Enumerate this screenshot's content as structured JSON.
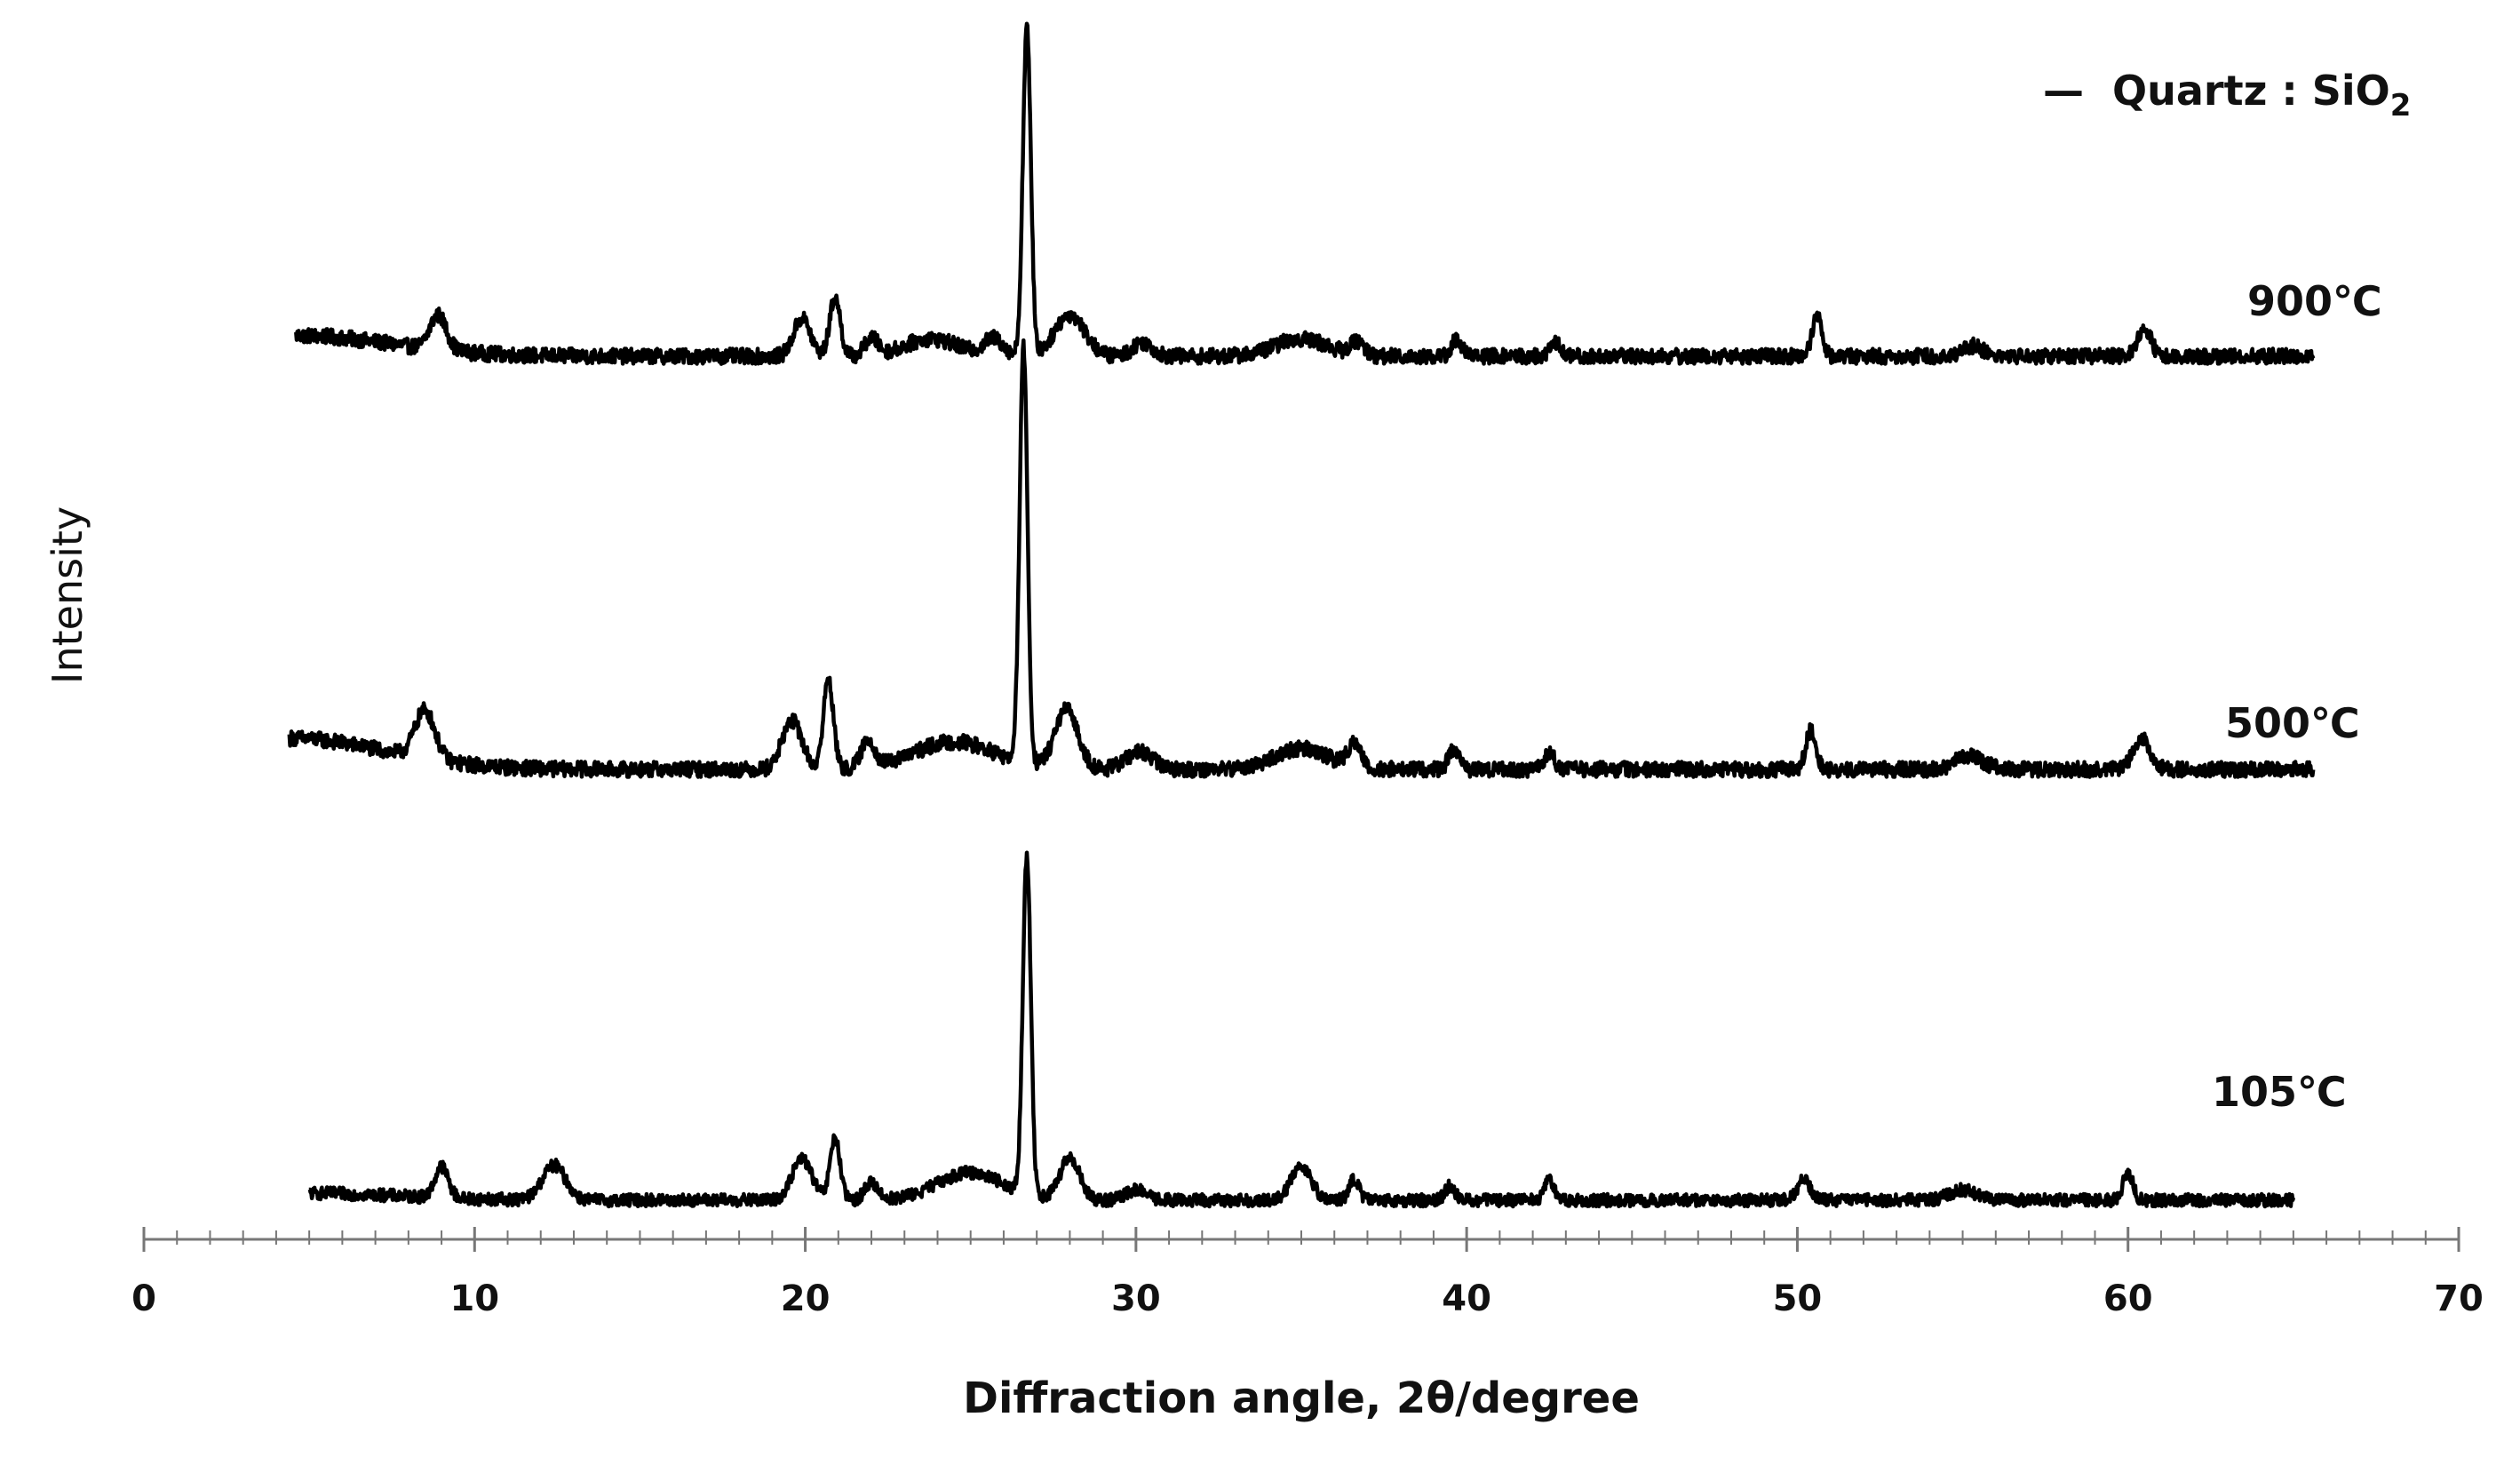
{
  "chart_data": {
    "type": "line",
    "title": "",
    "xlabel": "Diffraction angle, 2θ/degree",
    "ylabel": "Intensity",
    "xlim": [
      0,
      70
    ],
    "x_ticks": [
      0,
      10,
      20,
      30,
      40,
      50,
      60,
      70
    ],
    "x_minor_step": 1,
    "y_ticks_shown": false,
    "grid": false,
    "legend": {
      "position": "top-right",
      "marker": "—",
      "text": "Quartz : SiO",
      "subscript": "2"
    },
    "series": [
      {
        "name": "900℃",
        "x_range": [
          4.6,
          65.6
        ],
        "baseline": 0.1,
        "noise": 0.022,
        "start_offset": 0.06,
        "peaks": [
          {
            "x": 8.9,
            "h": 0.1,
            "w": 0.25
          },
          {
            "x": 19.9,
            "h": 0.11,
            "w": 0.25
          },
          {
            "x": 20.9,
            "h": 0.17,
            "w": 0.16
          },
          {
            "x": 22.0,
            "h": 0.05,
            "w": 0.2
          },
          {
            "x": 23.8,
            "h": 0.05,
            "w": 0.8
          },
          {
            "x": 25.7,
            "h": 0.05,
            "w": 0.3
          },
          {
            "x": 26.7,
            "h": 0.95,
            "w": 0.12
          },
          {
            "x": 28.0,
            "h": 0.12,
            "w": 0.45
          },
          {
            "x": 30.2,
            "h": 0.04,
            "w": 0.3
          },
          {
            "x": 35.0,
            "h": 0.05,
            "w": 0.8
          },
          {
            "x": 36.7,
            "h": 0.04,
            "w": 0.2
          },
          {
            "x": 39.7,
            "h": 0.05,
            "w": 0.15
          },
          {
            "x": 42.7,
            "h": 0.04,
            "w": 0.15
          },
          {
            "x": 50.6,
            "h": 0.12,
            "w": 0.15
          },
          {
            "x": 55.3,
            "h": 0.03,
            "w": 0.3
          },
          {
            "x": 60.5,
            "h": 0.08,
            "w": 0.2
          }
        ]
      },
      {
        "name": "500℃",
        "x_range": [
          4.4,
          65.6
        ],
        "baseline": 0.1,
        "noise": 0.022,
        "start_offset": 0.09,
        "peaks": [
          {
            "x": 8.5,
            "h": 0.14,
            "w": 0.3
          },
          {
            "x": 19.6,
            "h": 0.14,
            "w": 0.3
          },
          {
            "x": 20.7,
            "h": 0.26,
            "w": 0.15
          },
          {
            "x": 21.9,
            "h": 0.08,
            "w": 0.2
          },
          {
            "x": 24.5,
            "h": 0.08,
            "w": 1.2
          },
          {
            "x": 26.6,
            "h": 1.2,
            "w": 0.12
          },
          {
            "x": 27.9,
            "h": 0.17,
            "w": 0.35
          },
          {
            "x": 30.1,
            "h": 0.05,
            "w": 0.4
          },
          {
            "x": 35.0,
            "h": 0.06,
            "w": 0.8
          },
          {
            "x": 36.6,
            "h": 0.07,
            "w": 0.2
          },
          {
            "x": 39.6,
            "h": 0.06,
            "w": 0.15
          },
          {
            "x": 42.5,
            "h": 0.05,
            "w": 0.15
          },
          {
            "x": 50.4,
            "h": 0.11,
            "w": 0.15
          },
          {
            "x": 55.2,
            "h": 0.04,
            "w": 0.4
          },
          {
            "x": 60.4,
            "h": 0.09,
            "w": 0.25
          }
        ]
      },
      {
        "name": "105℃",
        "x_range": [
          5.0,
          65.0
        ],
        "baseline": 0.1,
        "noise": 0.018,
        "start_offset": 0.02,
        "peaks": [
          {
            "x": 9.0,
            "h": 0.09,
            "w": 0.2
          },
          {
            "x": 12.4,
            "h": 0.1,
            "w": 0.35
          },
          {
            "x": 19.9,
            "h": 0.12,
            "w": 0.3
          },
          {
            "x": 20.9,
            "h": 0.18,
            "w": 0.15
          },
          {
            "x": 22.0,
            "h": 0.05,
            "w": 0.2
          },
          {
            "x": 25.0,
            "h": 0.08,
            "w": 1.0
          },
          {
            "x": 26.7,
            "h": 0.98,
            "w": 0.12
          },
          {
            "x": 28.0,
            "h": 0.12,
            "w": 0.3
          },
          {
            "x": 30.0,
            "h": 0.03,
            "w": 0.3
          },
          {
            "x": 35.0,
            "h": 0.1,
            "w": 0.3
          },
          {
            "x": 36.6,
            "h": 0.06,
            "w": 0.15
          },
          {
            "x": 39.5,
            "h": 0.04,
            "w": 0.15
          },
          {
            "x": 42.5,
            "h": 0.06,
            "w": 0.15
          },
          {
            "x": 50.2,
            "h": 0.06,
            "w": 0.2
          },
          {
            "x": 55.0,
            "h": 0.03,
            "w": 0.4
          },
          {
            "x": 60.0,
            "h": 0.08,
            "w": 0.15
          }
        ]
      }
    ]
  }
}
